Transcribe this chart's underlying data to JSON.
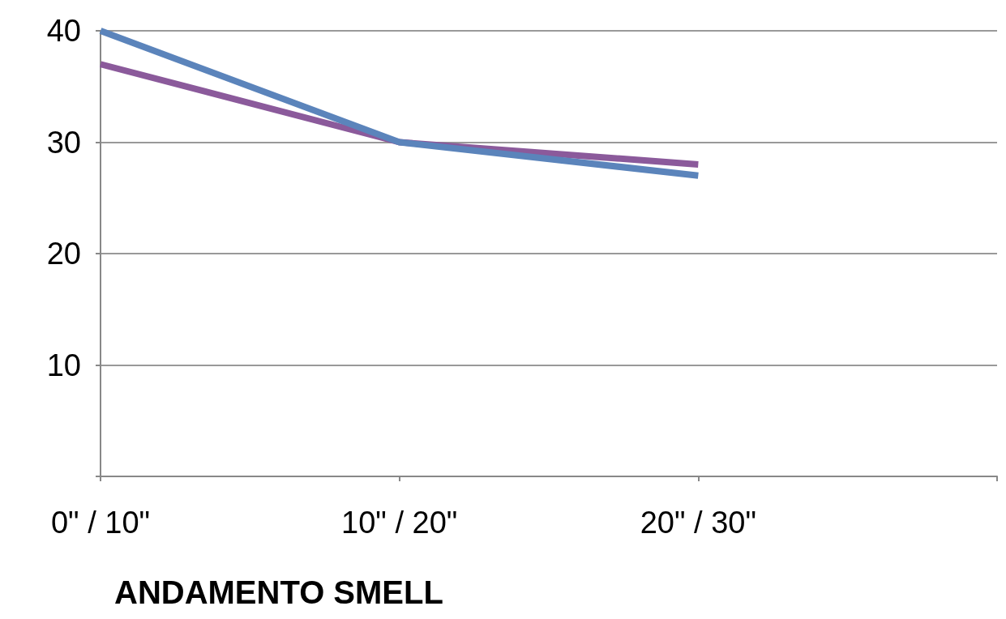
{
  "chart_data": {
    "type": "line",
    "title": "ANDAMENTO SMELL",
    "categories": [
      "0\" / 10\"",
      "10\" / 20\"",
      "20\" / 30\"",
      null
    ],
    "series": [
      {
        "color": "#8b5a9b",
        "values": [
          37,
          30,
          28,
          null
        ]
      },
      {
        "color": "#5b84bb",
        "values": [
          40,
          30,
          27,
          null
        ]
      }
    ],
    "ylim": [
      0,
      40
    ],
    "yticks": [
      {
        "value": 0,
        "label": null
      },
      10,
      20,
      30,
      40
    ],
    "grid": "y",
    "marker": "none",
    "line_style": "solid"
  }
}
